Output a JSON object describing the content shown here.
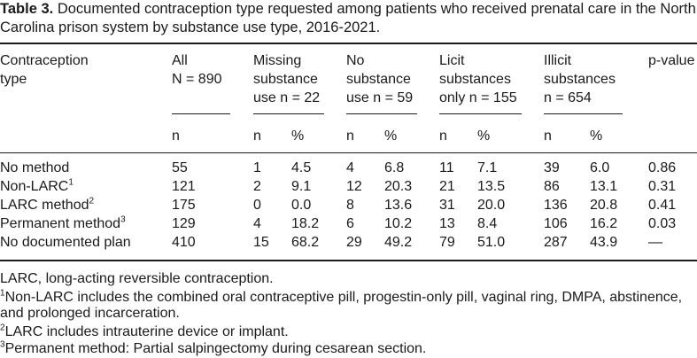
{
  "caption": {
    "label": "Table 3.",
    "text": "Documented contraception type requested among patients who received prenatal care in the North Carolina prison system by substance use type, 2016-2021."
  },
  "headers": {
    "contraception_type": "Contraception\ntype",
    "all": "All\nN = 890",
    "missing": "Missing\nsubstance\nuse n = 22",
    "no_substance": "No\nsubstance\nuse n = 59",
    "licit": "Licit\nsubstances\nonly n = 155",
    "illicit": "Illicit\nsubstances\nn = 654",
    "p_value": "p-value"
  },
  "subheaders": {
    "n": "n",
    "pct": "%"
  },
  "rows": [
    {
      "type": "No method",
      "sup": "",
      "all": "55",
      "miss_n": "1",
      "miss_p": "4.5",
      "nos_n": "4",
      "nos_p": "6.8",
      "lic_n": "11",
      "lic_p": "7.1",
      "ill_n": "39",
      "ill_p": "6.0",
      "p": "0.86"
    },
    {
      "type": "Non-LARC",
      "sup": "1",
      "all": "121",
      "miss_n": "2",
      "miss_p": "9.1",
      "nos_n": "12",
      "nos_p": "20.3",
      "lic_n": "21",
      "lic_p": "13.5",
      "ill_n": "86",
      "ill_p": "13.1",
      "p": "0.31"
    },
    {
      "type": "LARC method",
      "sup": "2",
      "all": "175",
      "miss_n": "0",
      "miss_p": "0.0",
      "nos_n": "8",
      "nos_p": "13.6",
      "lic_n": "31",
      "lic_p": "20.0",
      "ill_n": "136",
      "ill_p": "20.8",
      "p": "0.41"
    },
    {
      "type": "Permanent method",
      "sup": "3",
      "all": "129",
      "miss_n": "4",
      "miss_p": "18.2",
      "nos_n": "6",
      "nos_p": "10.2",
      "lic_n": "13",
      "lic_p": "8.4",
      "ill_n": "106",
      "ill_p": "16.2",
      "p": "0.03"
    },
    {
      "type": "No documented plan",
      "sup": "",
      "all": "410",
      "miss_n": "15",
      "miss_p": "68.2",
      "nos_n": "29",
      "nos_p": "49.2",
      "lic_n": "79",
      "lic_p": "51.0",
      "ill_n": "287",
      "ill_p": "43.9",
      "p": "—"
    }
  ],
  "footnotes": {
    "abbrev": "LARC, long-acting reversible contraception.",
    "n1_mark": "1",
    "n1": "Non-LARC includes the combined oral contraceptive pill, progestin-only pill, vaginal ring, DMPA, abstinence, and prolonged incarceration.",
    "n2_mark": "2",
    "n2": "LARC includes intrauterine device or implant.",
    "n3_mark": "3",
    "n3": "Permanent method: Partial salpingectomy during cesarean section."
  }
}
